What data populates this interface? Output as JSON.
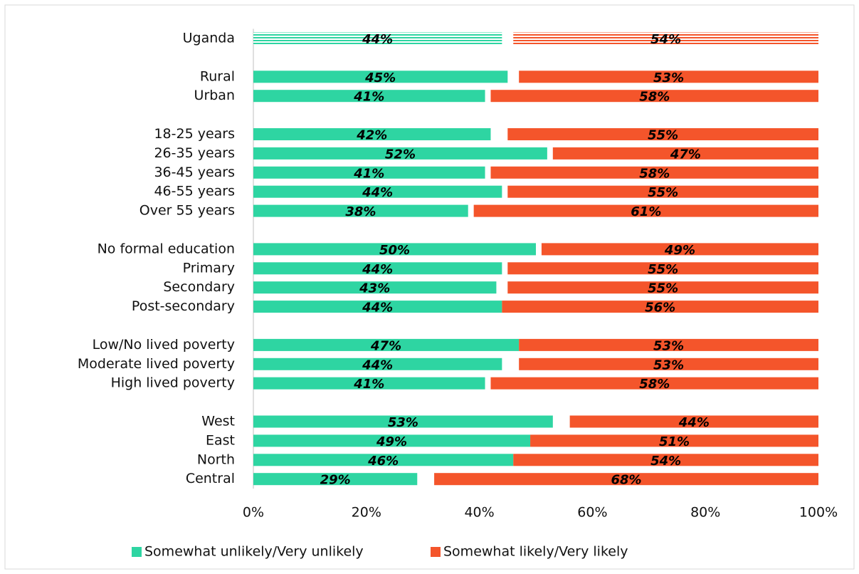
{
  "chart_data": {
    "type": "bar",
    "categories": [
      "Uganda",
      null,
      "Rural",
      "Urban",
      null,
      "18-25 years",
      "26-35 years",
      "36-45 years",
      "46-55 years",
      "Over 55 years",
      null,
      "No formal education",
      "Primary",
      "Secondary",
      "Post-secondary",
      null,
      "Low/No lived poverty",
      "Moderate lived poverty",
      "High lived poverty",
      null,
      "West",
      "East",
      "North",
      "Central"
    ],
    "series": [
      {
        "name": "Somewhat unlikely/Very unlikely",
        "color": "#2ed5a2",
        "values": [
          44,
          null,
          45,
          41,
          null,
          42,
          52,
          41,
          44,
          38,
          null,
          50,
          44,
          43,
          44,
          null,
          47,
          44,
          41,
          null,
          53,
          49,
          46,
          29
        ],
        "value_labels": [
          "44%",
          null,
          "45%",
          "41%",
          null,
          "42%",
          "52%",
          "41%",
          "44%",
          "38%",
          null,
          "50%",
          "44%",
          "43%",
          "44%",
          null,
          "47%",
          "44%",
          "41%",
          null,
          "53%",
          "49%",
          "46%",
          "29%"
        ]
      },
      {
        "name": "Somewhat likely/Very likely",
        "color": "#f4552b",
        "values": [
          54,
          null,
          53,
          58,
          null,
          55,
          47,
          58,
          55,
          61,
          null,
          49,
          55,
          55,
          56,
          null,
          53,
          53,
          58,
          null,
          44,
          51,
          54,
          68
        ],
        "value_labels": [
          "54%",
          null,
          "53%",
          "58%",
          null,
          "55%",
          "47%",
          "58%",
          "55%",
          "61%",
          null,
          "49%",
          "55%",
          "55%",
          "56%",
          null,
          "53%",
          "53%",
          "58%",
          null,
          "44%",
          "51%",
          "54%",
          "68%"
        ]
      }
    ],
    "xlim": [
      0,
      100
    ],
    "xticks": [
      {
        "value": 0,
        "label": "0%"
      },
      {
        "value": 20,
        "label": "20%"
      },
      {
        "value": 40,
        "label": "40%"
      },
      {
        "value": 60,
        "label": "60%"
      },
      {
        "value": 80,
        "label": "80%"
      },
      {
        "value": 100,
        "label": "100%"
      }
    ],
    "legend": "bottom"
  }
}
